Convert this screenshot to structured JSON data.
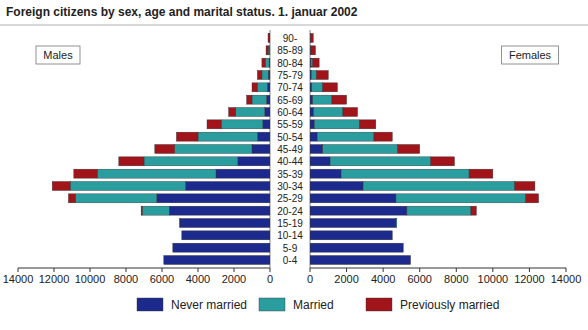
{
  "chart_data": {
    "type": "bar",
    "title": "Foreign citizens by sex, age and marital status. 1. januar 2002",
    "orientation": "horizontal",
    "stacked": true,
    "legend": "bottom",
    "groups": [
      "Males",
      "Females"
    ],
    "categories": [
      "0-4",
      "5-9",
      "10-14",
      "15-19",
      "20-24",
      "25-29",
      "30-34",
      "35-39",
      "40-44",
      "45-49",
      "50-54",
      "55-59",
      "60-64",
      "65-69",
      "70-74",
      "75-79",
      "80-84",
      "85-89",
      "90-"
    ],
    "xlim": [
      0,
      14000
    ],
    "xticks": [
      0,
      2000,
      4000,
      6000,
      8000,
      10000,
      12000,
      14000
    ],
    "series": [
      {
        "name": "Never married",
        "color": "#1c2a8e",
        "values": [
          [
            5900,
            5400,
            4900,
            5000,
            5600,
            6300,
            4700,
            3000,
            1800,
            1000,
            700,
            400,
            300,
            200,
            150,
            100,
            50,
            20,
            10
          ],
          [
            5500,
            5100,
            4500,
            4700,
            5300,
            4700,
            2900,
            1700,
            1100,
            700,
            400,
            250,
            200,
            150,
            100,
            80,
            50,
            30,
            20
          ]
        ]
      },
      {
        "name": "Married",
        "color": "#2a9d9f",
        "values": [
          [
            0,
            0,
            0,
            30,
            1500,
            4500,
            6400,
            6600,
            5200,
            4300,
            3300,
            2300,
            1600,
            800,
            550,
            350,
            200,
            80,
            30
          ],
          [
            0,
            0,
            0,
            50,
            3500,
            7100,
            8300,
            7000,
            5500,
            4100,
            3100,
            2450,
            1600,
            1050,
            600,
            270,
            100,
            20,
            10
          ]
        ]
      },
      {
        "name": "Previously married",
        "color": "#a0141a",
        "values": [
          [
            0,
            0,
            0,
            0,
            60,
            400,
            1000,
            1300,
            1400,
            1100,
            1200,
            800,
            400,
            300,
            300,
            250,
            200,
            120,
            70
          ],
          [
            0,
            0,
            0,
            0,
            300,
            700,
            1100,
            1300,
            1300,
            1200,
            1000,
            900,
            800,
            800,
            800,
            650,
            350,
            250,
            150
          ]
        ]
      }
    ]
  }
}
